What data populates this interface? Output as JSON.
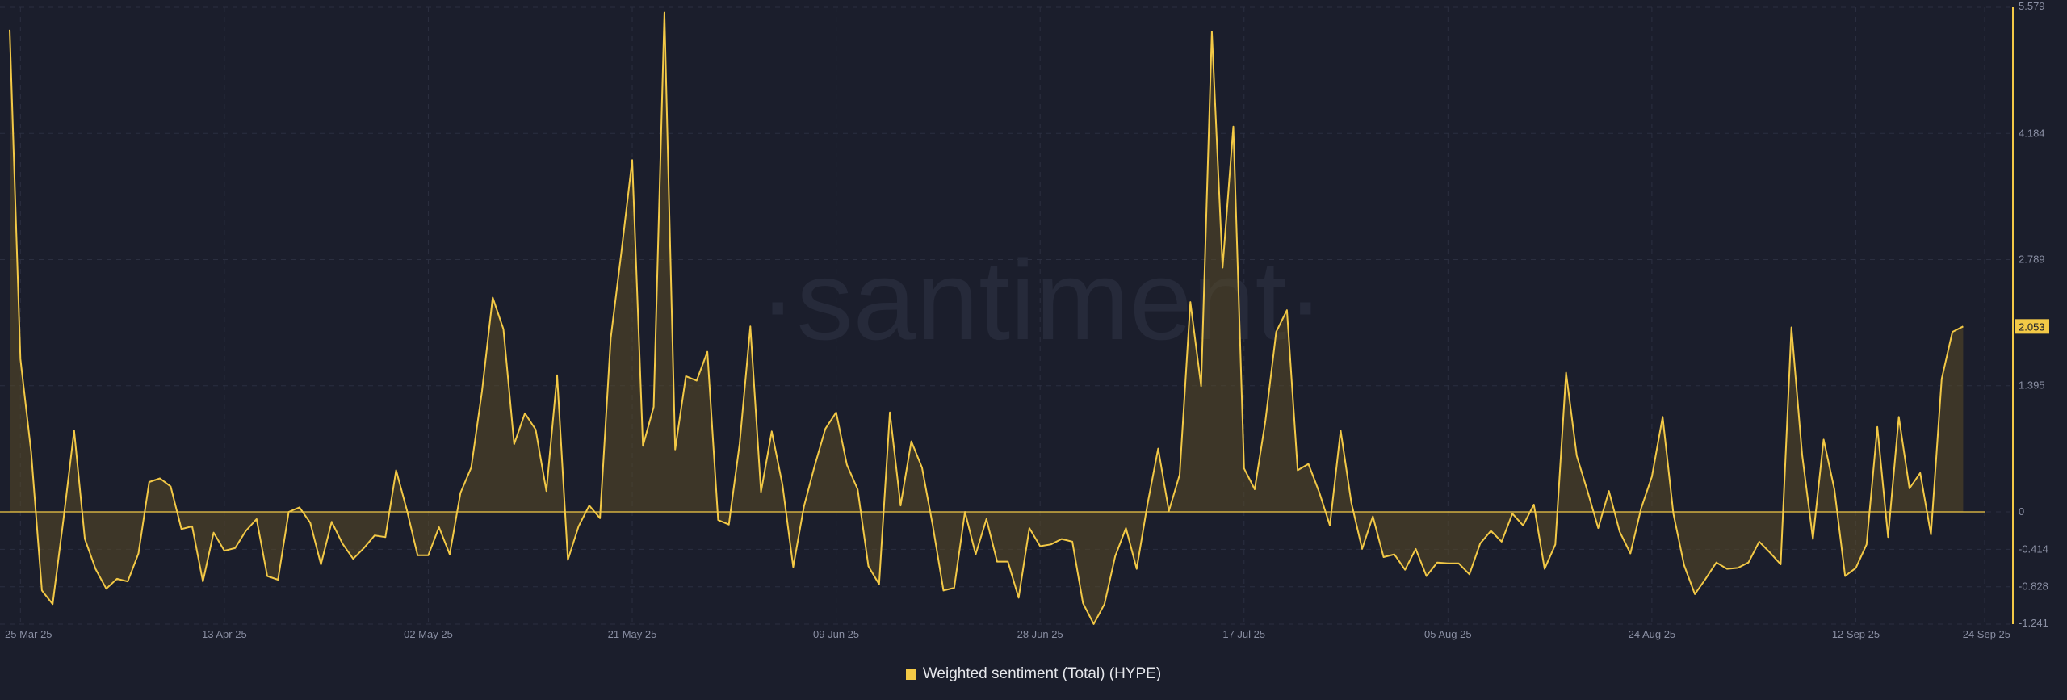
{
  "watermark": "·santiment·",
  "colors": {
    "background": "#1b1e2c",
    "line": "#f3c946",
    "fill_positive": "#5a4a26",
    "fill_negative": "#3a3528",
    "grid": "#2b2f40",
    "axis_text": "#8a8fa3",
    "value_badge": "#f3c946"
  },
  "legend": {
    "label": "Weighted sentiment (Total) (HYPE)"
  },
  "current_value_label": "2.053",
  "chart_data": {
    "type": "area",
    "series": [
      {
        "name": "Weighted sentiment (Total) (HYPE)",
        "start_date": "2025-03-24",
        "values": [
          5.33,
          1.69,
          0.66,
          -0.87,
          -1.02,
          -0.09,
          0.9,
          -0.3,
          -0.63,
          -0.85,
          -0.74,
          -0.77,
          -0.46,
          0.33,
          0.37,
          0.28,
          -0.19,
          -0.16,
          -0.77,
          -0.23,
          -0.43,
          -0.4,
          -0.21,
          -0.08,
          -0.71,
          -0.75,
          0.0,
          0.05,
          -0.12,
          -0.58,
          -0.11,
          -0.35,
          -0.52,
          -0.4,
          -0.26,
          -0.28,
          0.46,
          0.02,
          -0.48,
          -0.48,
          -0.17,
          -0.47,
          0.21,
          0.49,
          1.33,
          2.37,
          2.02,
          0.75,
          1.09,
          0.91,
          0.23,
          1.51,
          -0.53,
          -0.16,
          0.07,
          -0.07,
          1.92,
          2.88,
          3.89,
          0.73,
          1.16,
          5.52,
          0.69,
          1.5,
          1.45,
          1.77,
          -0.09,
          -0.14,
          0.75,
          2.05,
          0.22,
          0.89,
          0.3,
          -0.61,
          0.06,
          0.51,
          0.92,
          1.1,
          0.52,
          0.25,
          -0.6,
          -0.8,
          1.1,
          0.07,
          0.78,
          0.49,
          -0.15,
          -0.87,
          -0.84,
          0.0,
          -0.47,
          -0.08,
          -0.55,
          -0.55,
          -0.95,
          -0.18,
          -0.38,
          -0.36,
          -0.3,
          -0.33,
          -1.01,
          -1.24,
          -1.02,
          -0.49,
          -0.18,
          -0.63,
          0.08,
          0.7,
          0.01,
          0.41,
          2.32,
          1.39,
          5.31,
          2.7,
          4.26,
          0.48,
          0.25,
          1.01,
          1.99,
          2.23,
          0.46,
          0.53,
          0.22,
          -0.15,
          0.9,
          0.1,
          -0.41,
          -0.05,
          -0.5,
          -0.47,
          -0.64,
          -0.41,
          -0.71,
          -0.56,
          -0.57,
          -0.57,
          -0.69,
          -0.35,
          -0.21,
          -0.33,
          -0.02,
          -0.15,
          0.08,
          -0.63,
          -0.36,
          1.54,
          0.62,
          0.23,
          -0.18,
          0.23,
          -0.22,
          -0.46,
          0.04,
          0.39,
          1.05,
          -0.02,
          -0.59,
          -0.91,
          -0.74,
          -0.56,
          -0.63,
          -0.62,
          -0.56,
          -0.33,
          -0.45,
          -0.58,
          2.04,
          0.63,
          -0.3,
          0.8,
          0.25,
          -0.71,
          -0.62,
          -0.36,
          0.94,
          -0.28,
          1.05,
          0.26,
          0.43,
          -0.25,
          1.47,
          1.99,
          2.05
        ]
      }
    ],
    "x_tick_labels": [
      "25 Mar 25",
      "13 Apr 25",
      "02 May 25",
      "21 May 25",
      "09 Jun 25",
      "28 Jun 25",
      "17 Jul 25",
      "05 Aug 25",
      "24 Aug 25",
      "12 Sep 25",
      "24 Sep 25"
    ],
    "x_tick_day_offsets": [
      1,
      20,
      39,
      58,
      77,
      96,
      115,
      134,
      153,
      172,
      184
    ],
    "y_tick_labels": [
      "5.579",
      "4.184",
      "2.789",
      "1.395",
      "0",
      "-0.414",
      "-0.828",
      "-1.241"
    ],
    "y_tick_values": [
      5.579,
      4.184,
      2.789,
      1.395,
      0,
      -0.414,
      -0.828,
      -1.241
    ],
    "ylim": [
      -1.241,
      5.579
    ],
    "xlim_days": [
      0,
      184
    ],
    "grid": true,
    "title": "",
    "xlabel": "",
    "ylabel": ""
  }
}
